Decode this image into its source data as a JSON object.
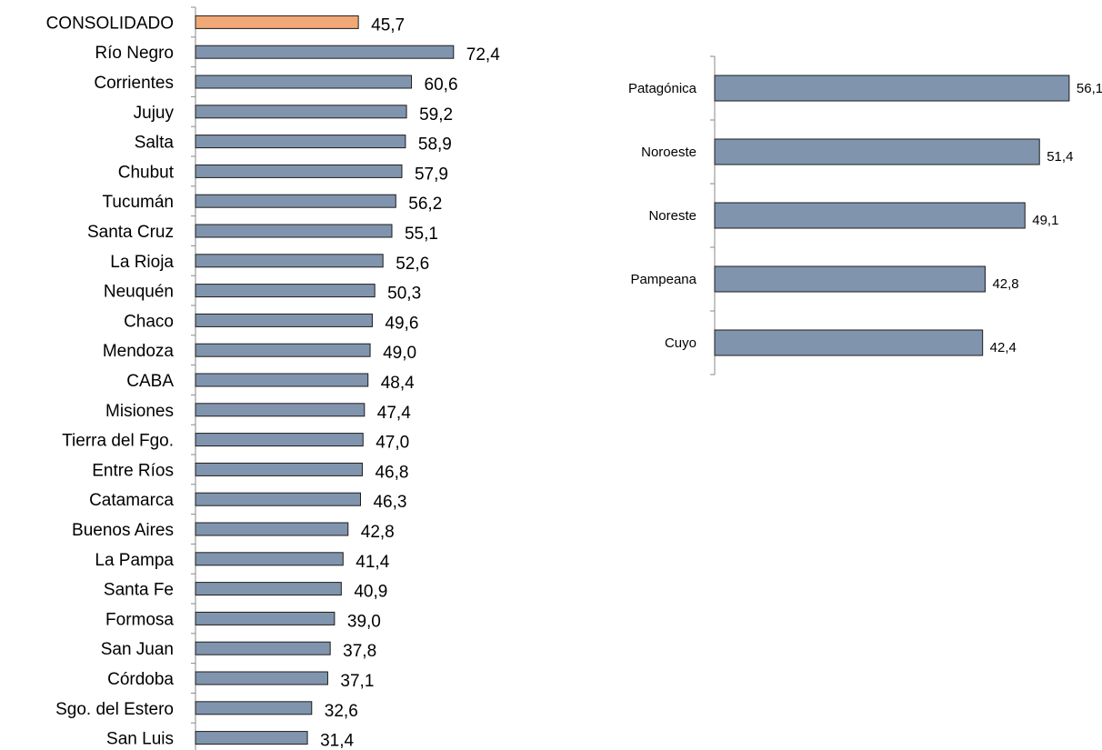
{
  "colors": {
    "bar": "#8094ae",
    "highlight": "#f0a876",
    "highlight_stroke": "#c0502a",
    "bar_stroke": "#1c1c1c"
  },
  "chart_data": [
    {
      "type": "bar",
      "orientation": "horizontal",
      "title": "",
      "xlabel": "",
      "ylabel": "",
      "xlim": [
        0,
        80
      ],
      "grid": false,
      "categories": [
        "CONSOLIDADO",
        "Río Negro",
        "Corrientes",
        "Jujuy",
        "Salta",
        "Chubut",
        "Tucumán",
        "Santa Cruz",
        "La Rioja",
        "Neuquén",
        "Chaco",
        "Mendoza",
        "CABA",
        "Misiones",
        "Tierra del Fgo.",
        "Entre Ríos",
        "Catamarca",
        "Buenos Aires",
        "La Pampa",
        "Santa Fe",
        "Formosa",
        "San Juan",
        "Córdoba",
        "Sgo. del Estero",
        "San Luis"
      ],
      "values": [
        45.7,
        72.4,
        60.6,
        59.2,
        58.9,
        57.9,
        56.2,
        55.1,
        52.6,
        50.3,
        49.6,
        49.0,
        48.4,
        47.4,
        47.0,
        46.8,
        46.3,
        42.8,
        41.4,
        40.9,
        39.0,
        37.8,
        37.1,
        32.6,
        31.4
      ],
      "value_labels": [
        "45,7",
        "72,4",
        "60,6",
        "59,2",
        "58,9",
        "57,9",
        "56,2",
        "55,1",
        "52,6",
        "50,3",
        "49,6",
        "49,0",
        "48,4",
        "47,4",
        "47,0",
        "46,8",
        "46,3",
        "42,8",
        "41,4",
        "40,9",
        "39,0",
        "37,8",
        "37,1",
        "32,6",
        "31,4"
      ],
      "highlighted_category": "CONSOLIDADO"
    },
    {
      "type": "bar",
      "orientation": "horizontal",
      "title": "",
      "xlabel": "",
      "ylabel": "",
      "xlim": [
        0,
        60
      ],
      "grid": false,
      "categories": [
        "Patagónica",
        "Noroeste",
        "Noreste",
        "Pampeana",
        "Cuyo"
      ],
      "values": [
        56.1,
        51.4,
        49.1,
        42.8,
        42.4
      ],
      "value_labels": [
        "56,1",
        "51,4",
        "49,1",
        "42,8",
        "42,4"
      ]
    }
  ]
}
